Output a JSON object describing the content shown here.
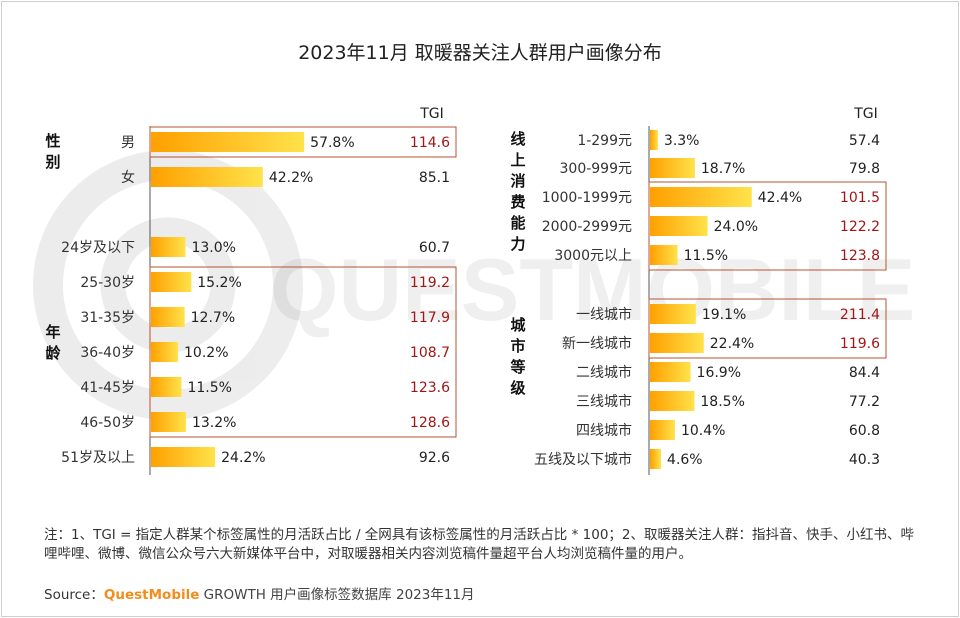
{
  "title": "2023年11月 取暖器关注人群用户画像分布",
  "watermark": "QUESTMOBILE",
  "chart_data": [
    {
      "type": "bar",
      "orientation": "horizontal",
      "tgi_header": "TGI",
      "groups": [
        {
          "label": "性别",
          "rows": [
            {
              "category": "男",
              "value": 57.8,
              "label": "57.8%",
              "tgi": 114.6,
              "tgi_label": "114.6",
              "highlight": true
            },
            {
              "category": "女",
              "value": 42.2,
              "label": "42.2%",
              "tgi": 85.1,
              "tgi_label": "85.1",
              "highlight": false
            }
          ]
        },
        {
          "label": "年龄",
          "rows": [
            {
              "category": "24岁及以下",
              "value": 13.0,
              "label": "13.0%",
              "tgi": 60.7,
              "tgi_label": "60.7",
              "highlight": false
            },
            {
              "category": "25-30岁",
              "value": 15.2,
              "label": "15.2%",
              "tgi": 119.2,
              "tgi_label": "119.2",
              "highlight": true
            },
            {
              "category": "31-35岁",
              "value": 12.7,
              "label": "12.7%",
              "tgi": 117.9,
              "tgi_label": "117.9",
              "highlight": true
            },
            {
              "category": "36-40岁",
              "value": 10.2,
              "label": "10.2%",
              "tgi": 108.7,
              "tgi_label": "108.7",
              "highlight": true
            },
            {
              "category": "41-45岁",
              "value": 11.5,
              "label": "11.5%",
              "tgi": 123.6,
              "tgi_label": "123.6",
              "highlight": true
            },
            {
              "category": "46-50岁",
              "value": 13.2,
              "label": "13.2%",
              "tgi": 128.6,
              "tgi_label": "128.6",
              "highlight": true
            },
            {
              "category": "51岁及以上",
              "value": 24.2,
              "label": "24.2%",
              "tgi": 92.6,
              "tgi_label": "92.6",
              "highlight": false
            }
          ]
        }
      ]
    },
    {
      "type": "bar",
      "orientation": "horizontal",
      "tgi_header": "TGI",
      "groups": [
        {
          "label": "线上消费能力",
          "rows": [
            {
              "category": "1-299元",
              "value": 3.3,
              "label": "3.3%",
              "tgi": 57.4,
              "tgi_label": "57.4",
              "highlight": false
            },
            {
              "category": "300-999元",
              "value": 18.7,
              "label": "18.7%",
              "tgi": 79.8,
              "tgi_label": "79.8",
              "highlight": false
            },
            {
              "category": "1000-1999元",
              "value": 42.4,
              "label": "42.4%",
              "tgi": 101.5,
              "tgi_label": "101.5",
              "highlight": true
            },
            {
              "category": "2000-2999元",
              "value": 24.0,
              "label": "24.0%",
              "tgi": 122.2,
              "tgi_label": "122.2",
              "highlight": true
            },
            {
              "category": "3000元以上",
              "value": 11.5,
              "label": "11.5%",
              "tgi": 123.8,
              "tgi_label": "123.8",
              "highlight": true
            }
          ]
        },
        {
          "label": "城市等级",
          "rows": [
            {
              "category": "一线城市",
              "value": 19.1,
              "label": "19.1%",
              "tgi": 211.4,
              "tgi_label": "211.4",
              "highlight": true
            },
            {
              "category": "新一线城市",
              "value": 22.4,
              "label": "22.4%",
              "tgi": 119.6,
              "tgi_label": "119.6",
              "highlight": true
            },
            {
              "category": "二线城市",
              "value": 16.9,
              "label": "16.9%",
              "tgi": 84.4,
              "tgi_label": "84.4",
              "highlight": false
            },
            {
              "category": "三线城市",
              "value": 18.5,
              "label": "18.5%",
              "tgi": 77.2,
              "tgi_label": "77.2",
              "highlight": false
            },
            {
              "category": "四线城市",
              "value": 10.4,
              "label": "10.4%",
              "tgi": 60.8,
              "tgi_label": "60.8",
              "highlight": false
            },
            {
              "category": "五线及以下城市",
              "value": 4.6,
              "label": "4.6%",
              "tgi": 40.3,
              "tgi_label": "40.3",
              "highlight": false
            }
          ]
        }
      ]
    }
  ],
  "colors": {
    "bar_start": "#ffa000",
    "bar_end": "#ffe24a",
    "highlight_border": "#b5532f",
    "highlight_text": "#a31515",
    "normal_text": "#222222",
    "brand": "#f28c1c"
  },
  "footnote": "注：1、TGI = 指定人群某个标签属性的月活跃占比 / 全网具有该标签属性的月活跃占比 * 100；2、取暖器关注人群：指抖音、快手、小红书、哔哩哔哩、微博、微信公众号六大新媒体平台中，对取暖器相关内容浏览稿件量超平台人均浏览稿件量的用户。",
  "source": {
    "prefix": "Source：",
    "brand": "QuestMobile",
    "rest": " GROWTH 用户画像标签数据库 2023年11月"
  }
}
